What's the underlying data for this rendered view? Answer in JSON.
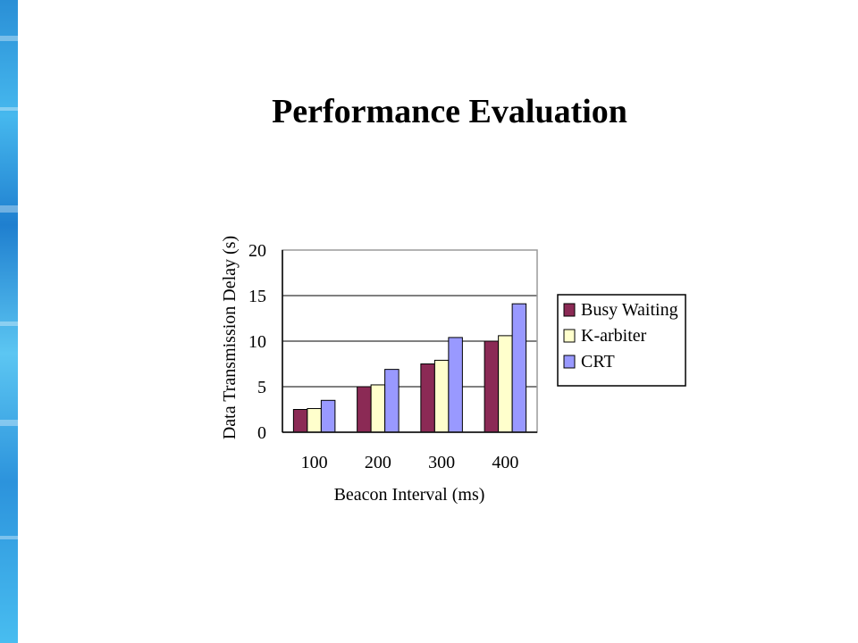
{
  "slide": {
    "title": "Performance Evaluation"
  },
  "colors": {
    "Busy Waiting": "#8b2a55",
    "K-arbiter": "#ffffcc",
    "CRT": "#9999ff",
    "accent_strip": "#2a8fd6"
  },
  "chart_data": {
    "type": "bar",
    "title": "",
    "xlabel": "Beacon Interval (ms)",
    "ylabel": "Data Transmission Delay (s)",
    "categories": [
      "100",
      "200",
      "300",
      "400"
    ],
    "ylim": [
      0,
      20
    ],
    "yticks": [
      "0",
      "5",
      "10",
      "15",
      "20"
    ],
    "grid": "horizontal",
    "legend_position": "right",
    "series": [
      {
        "name": "Busy Waiting",
        "values": [
          2.5,
          5.0,
          7.5,
          10.0
        ]
      },
      {
        "name": "K-arbiter",
        "values": [
          2.6,
          5.2,
          7.9,
          10.6
        ]
      },
      {
        "name": "CRT",
        "values": [
          3.5,
          6.9,
          10.4,
          14.1
        ]
      }
    ]
  }
}
